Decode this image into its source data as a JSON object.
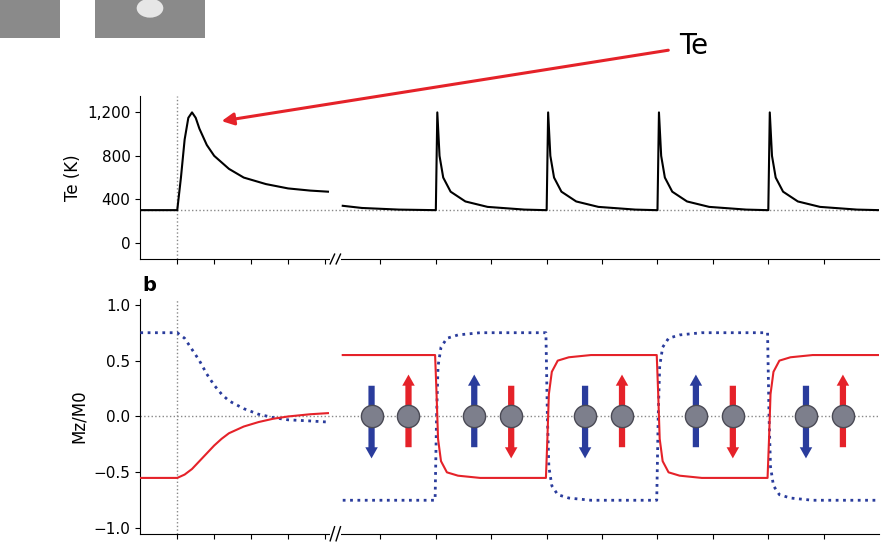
{
  "chart_data": [
    {
      "type": "line",
      "ylabel": "Te (K)",
      "x": [
        0,
        0.5,
        0.55,
        0.6,
        0.65,
        0.7,
        0.75,
        0.8,
        0.9,
        1.0,
        1.2,
        1.4,
        1.7,
        2.0,
        2.3,
        2.54,
        2.64,
        2.74,
        3.0,
        3.5,
        3.98,
        4.0,
        4.02,
        4.05,
        4.1,
        4.2,
        4.4,
        4.7,
        5.2,
        5.48,
        5.5,
        5.52,
        5.55,
        5.6,
        5.7,
        5.9,
        6.2,
        6.7,
        6.98,
        7.0,
        7.02,
        7.05,
        7.1,
        7.2,
        7.4,
        7.7,
        8.2,
        8.48,
        8.5,
        8.52,
        8.55,
        8.6,
        8.7,
        8.9,
        9.2,
        9.7,
        10.0
      ],
      "series": [
        {
          "color": "#000000",
          "line_style": "solid",
          "values": [
            300,
            300,
            600,
            950,
            1150,
            1200,
            1150,
            1050,
            900,
            800,
            680,
            600,
            540,
            500,
            480,
            470,
            null,
            340,
            320,
            305,
            300,
            300,
            1200,
            800,
            600,
            470,
            380,
            330,
            305,
            300,
            300,
            1200,
            800,
            600,
            470,
            380,
            330,
            305,
            300,
            300,
            1200,
            800,
            600,
            470,
            380,
            330,
            305,
            300,
            300,
            1200,
            800,
            600,
            470,
            380,
            330,
            305,
            300
          ]
        }
      ],
      "xlim": [
        0,
        10
      ],
      "xticks": [
        0.5,
        1.0,
        1.5,
        2.0,
        2.5,
        3.25,
        4.0,
        4.75,
        5.5,
        6.25,
        7.0,
        7.75,
        8.5,
        9.25
      ],
      "ylim": [
        -150,
        1350
      ],
      "yticks": [
        0,
        400,
        800,
        {
          "value": 1200,
          "label": "1,200"
        }
      ],
      "tick_labels": "y",
      "hline": 300,
      "vline": 0.5,
      "annotations": [
        {
          "text": "Te",
          "x": 1.1,
          "y": 1120
        }
      ]
    },
    {
      "type": "line",
      "panel_label": "b",
      "ylabel": "Mz/M0",
      "x": [
        0,
        0.5,
        0.6,
        0.7,
        0.8,
        0.9,
        1.0,
        1.1,
        1.2,
        1.4,
        1.6,
        1.8,
        2.0,
        2.3,
        2.54,
        2.64,
        2.74,
        3.99,
        4.01,
        4.03,
        4.07,
        4.15,
        4.3,
        4.6,
        5.49,
        5.51,
        5.53,
        5.57,
        5.65,
        5.8,
        6.1,
        6.99,
        7.01,
        7.03,
        7.07,
        7.15,
        7.3,
        7.6,
        8.49,
        8.51,
        8.53,
        8.57,
        8.65,
        8.8,
        9.1,
        10.0
      ],
      "series": [
        {
          "color": "#2a3c9c",
          "line_style": "dotted",
          "values": [
            0.75,
            0.75,
            0.7,
            0.6,
            0.5,
            0.38,
            0.28,
            0.2,
            0.14,
            0.07,
            0.02,
            -0.01,
            -0.03,
            -0.04,
            -0.05,
            null,
            -0.75,
            -0.75,
            0.0,
            0.45,
            0.62,
            0.7,
            0.73,
            0.75,
            0.75,
            0.0,
            -0.45,
            -0.62,
            -0.7,
            -0.73,
            -0.75,
            -0.75,
            0.0,
            0.45,
            0.62,
            0.7,
            0.73,
            0.75,
            0.75,
            0.0,
            -0.45,
            -0.62,
            -0.7,
            -0.73,
            -0.75,
            -0.75
          ]
        },
        {
          "color": "#e52229",
          "line_style": "solid",
          "values": [
            -0.55,
            -0.55,
            -0.52,
            -0.47,
            -0.4,
            -0.33,
            -0.26,
            -0.2,
            -0.15,
            -0.09,
            -0.05,
            -0.02,
            0.0,
            0.02,
            0.03,
            null,
            0.55,
            0.55,
            0.2,
            -0.2,
            -0.4,
            -0.5,
            -0.53,
            -0.55,
            -0.55,
            -0.2,
            0.2,
            0.4,
            0.5,
            0.53,
            0.55,
            0.55,
            0.2,
            -0.2,
            -0.4,
            -0.5,
            -0.53,
            -0.55,
            -0.55,
            -0.2,
            0.2,
            0.4,
            0.5,
            0.53,
            0.55,
            0.55
          ]
        }
      ],
      "xlim": [
        0,
        10
      ],
      "xticks": [
        0.5,
        1.0,
        1.5,
        2.0,
        2.5,
        3.25,
        4.0,
        4.75,
        5.5,
        6.25,
        7.0,
        7.75,
        8.5,
        9.25
      ],
      "ylim": [
        -1.05,
        1.05
      ],
      "yticks": [
        {
          "value": -1.0,
          "label": "−1.0"
        },
        {
          "value": -0.5,
          "label": "−0.5"
        },
        0.0,
        0.5,
        1.0
      ],
      "tick_labels": "y",
      "hline": 0.0,
      "vline": 0.5
    }
  ]
}
